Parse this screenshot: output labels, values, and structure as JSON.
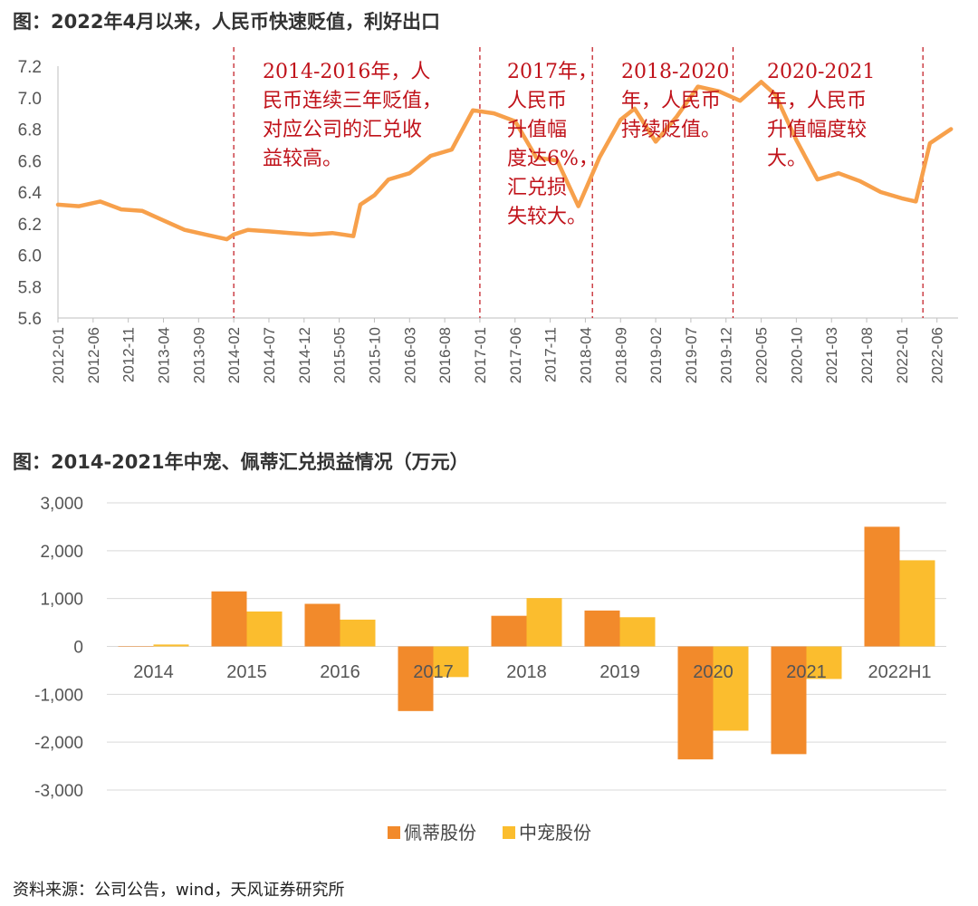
{
  "chart_data": [
    {
      "type": "line",
      "title": "图：2022年4月以来，人民币快速贬值，利好出口",
      "ylim": [
        5.6,
        7.2
      ],
      "yticks": [
        "5.6",
        "5.8",
        "6.0",
        "6.2",
        "6.4",
        "6.6",
        "6.8",
        "7.0",
        "7.2"
      ],
      "xtick_labels": [
        "2012-01",
        "2012-06",
        "2012-11",
        "2013-04",
        "2013-09",
        "2014-02",
        "2014-07",
        "2014-12",
        "2015-05",
        "2015-10",
        "2016-03",
        "2016-08",
        "2017-01",
        "2017-06",
        "2017-11",
        "2018-04",
        "2018-09",
        "2019-02",
        "2019-07",
        "2019-12",
        "2020-05",
        "2020-10",
        "2021-03",
        "2021-08",
        "2022-01",
        "2022-06"
      ],
      "line_color": "#F7A04B",
      "series": [
        {
          "x": [
            "2012-01",
            "2012-04",
            "2012-07",
            "2012-10",
            "2013-01",
            "2013-04",
            "2013-07",
            "2013-10",
            "2014-01",
            "2014-02",
            "2014-04",
            "2014-07",
            "2014-10",
            "2015-01",
            "2015-04",
            "2015-07",
            "2015-08",
            "2015-10",
            "2015-12",
            "2016-03",
            "2016-06",
            "2016-09",
            "2016-12",
            "2017-03",
            "2017-06",
            "2017-09",
            "2017-12",
            "2018-03",
            "2018-06",
            "2018-09",
            "2018-11",
            "2019-02",
            "2019-05",
            "2019-08",
            "2019-11",
            "2020-02",
            "2020-05",
            "2020-07",
            "2020-10",
            "2021-01",
            "2021-04",
            "2021-07",
            "2021-10",
            "2022-01",
            "2022-03",
            "2022-05",
            "2022-08"
          ],
          "y": [
            6.32,
            6.31,
            6.34,
            6.29,
            6.28,
            6.22,
            6.16,
            6.13,
            6.1,
            6.13,
            6.16,
            6.15,
            6.14,
            6.13,
            6.14,
            6.12,
            6.32,
            6.38,
            6.48,
            6.52,
            6.63,
            6.67,
            6.92,
            6.9,
            6.85,
            6.62,
            6.6,
            6.31,
            6.62,
            6.86,
            6.93,
            6.72,
            6.88,
            7.07,
            7.04,
            6.98,
            7.1,
            7.02,
            6.73,
            6.48,
            6.52,
            6.47,
            6.4,
            6.36,
            6.34,
            6.71,
            6.8
          ]
        }
      ],
      "vlines": [
        "2014-02",
        "2017-01",
        "2018-05",
        "2020-01",
        "2022-04"
      ],
      "annotations": [
        {
          "lines": [
            "2014-2016年，人",
            "民币连续三年贬值，",
            "对应公司的汇兑收",
            "益较高。"
          ]
        },
        {
          "lines": [
            "2017年，",
            "人民币",
            "升值幅",
            "度达6%，",
            "汇兑损",
            "失较大。"
          ]
        },
        {
          "lines": [
            "2018-2020",
            "年，人民币",
            "持续贬值。"
          ]
        },
        {
          "lines": [
            "2020-2021",
            "年，人民币",
            "升值幅度较",
            "大。"
          ]
        }
      ]
    },
    {
      "type": "bar",
      "title": "图：2014-2021年中宠、佩蒂汇兑损益情况（万元）",
      "categories": [
        "2014",
        "2015",
        "2016",
        "2017",
        "2018",
        "2019",
        "2020",
        "2021",
        "2022H1"
      ],
      "ylim": [
        -3000,
        3000
      ],
      "yticks": [
        "3,000",
        "2,000",
        "1,000",
        "0",
        "-1,000",
        "-2,000",
        "-3,000"
      ],
      "series": [
        {
          "name": "佩蒂股份",
          "color": "#F28A2B",
          "values": [
            0,
            1150,
            890,
            -1350,
            640,
            750,
            -2360,
            -2250,
            2500
          ]
        },
        {
          "name": "中宠股份",
          "color": "#FBBD2E",
          "values": [
            40,
            730,
            560,
            -640,
            1010,
            610,
            -1760,
            -680,
            1800
          ]
        }
      ],
      "legend": "bottom"
    }
  ],
  "source": "资料来源：公司公告，wind，天风证券研究所"
}
